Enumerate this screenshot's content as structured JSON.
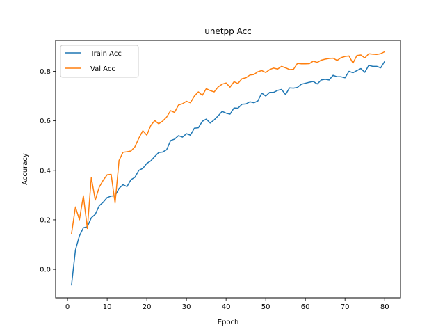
{
  "chart_data": {
    "type": "line",
    "title": "unetpp Acc",
    "xlabel": "Epoch",
    "ylabel": "Accuracy",
    "xlim": [
      -3,
      84
    ],
    "ylim": [
      -0.115,
      0.925
    ],
    "xticks": [
      0,
      10,
      20,
      30,
      40,
      50,
      60,
      70,
      80
    ],
    "yticks": [
      0.0,
      0.2,
      0.4,
      0.6,
      0.8
    ],
    "grid": false,
    "legend": "top-left",
    "x": [
      1,
      2,
      3,
      4,
      5,
      6,
      7,
      8,
      9,
      10,
      11,
      12,
      13,
      14,
      15,
      16,
      17,
      18,
      19,
      20,
      21,
      22,
      23,
      24,
      25,
      26,
      27,
      28,
      29,
      30,
      31,
      32,
      33,
      34,
      35,
      36,
      37,
      38,
      39,
      40,
      41,
      42,
      43,
      44,
      45,
      46,
      47,
      48,
      49,
      50,
      51,
      52,
      53,
      54,
      55,
      56,
      57,
      58,
      59,
      60,
      61,
      62,
      63,
      64,
      65,
      66,
      67,
      68,
      69,
      70,
      71,
      72,
      73,
      74,
      75,
      76,
      77,
      78,
      79,
      80
    ],
    "series": [
      {
        "name": "Train Acc",
        "color": "#1f77b4",
        "values": [
          -0.065,
          0.078,
          0.135,
          0.168,
          0.172,
          0.208,
          0.222,
          0.257,
          0.271,
          0.29,
          0.296,
          0.297,
          0.327,
          0.342,
          0.334,
          0.362,
          0.372,
          0.4,
          0.408,
          0.428,
          0.438,
          0.456,
          0.472,
          0.474,
          0.483,
          0.52,
          0.526,
          0.54,
          0.534,
          0.548,
          0.542,
          0.57,
          0.572,
          0.598,
          0.607,
          0.591,
          0.604,
          0.62,
          0.638,
          0.631,
          0.627,
          0.652,
          0.651,
          0.667,
          0.668,
          0.677,
          0.673,
          0.68,
          0.712,
          0.7,
          0.715,
          0.715,
          0.723,
          0.727,
          0.706,
          0.733,
          0.732,
          0.735,
          0.748,
          0.752,
          0.756,
          0.759,
          0.749,
          0.765,
          0.768,
          0.765,
          0.784,
          0.778,
          0.778,
          0.774,
          0.8,
          0.794,
          0.803,
          0.811,
          0.796,
          0.824,
          0.82,
          0.82,
          0.814,
          0.84
        ]
      },
      {
        "name": "Val Acc",
        "color": "#ff7f0e",
        "values": [
          0.143,
          0.252,
          0.2,
          0.297,
          0.165,
          0.371,
          0.28,
          0.332,
          0.36,
          0.382,
          0.384,
          0.268,
          0.44,
          0.473,
          0.475,
          0.478,
          0.495,
          0.53,
          0.56,
          0.542,
          0.581,
          0.601,
          0.588,
          0.599,
          0.615,
          0.641,
          0.634,
          0.664,
          0.669,
          0.679,
          0.673,
          0.7,
          0.717,
          0.703,
          0.73,
          0.722,
          0.717,
          0.737,
          0.748,
          0.753,
          0.736,
          0.758,
          0.751,
          0.77,
          0.774,
          0.785,
          0.787,
          0.798,
          0.803,
          0.795,
          0.807,
          0.813,
          0.809,
          0.82,
          0.814,
          0.807,
          0.808,
          0.832,
          0.83,
          0.83,
          0.831,
          0.841,
          0.836,
          0.845,
          0.849,
          0.852,
          0.853,
          0.844,
          0.855,
          0.86,
          0.862,
          0.833,
          0.864,
          0.866,
          0.854,
          0.871,
          0.869,
          0.868,
          0.871,
          0.879
        ]
      }
    ]
  }
}
